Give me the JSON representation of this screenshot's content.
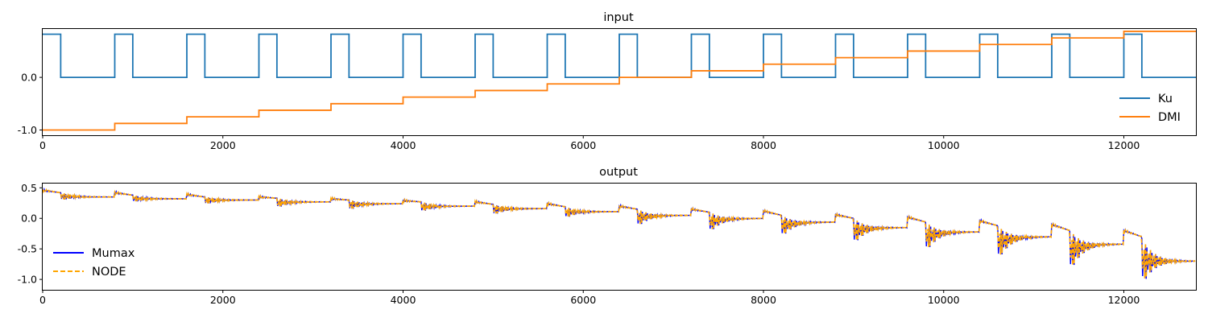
{
  "chart_data": [
    {
      "type": "line",
      "title": "input",
      "xlabel": "",
      "ylabel": "",
      "xlim": [
        0,
        12800
      ],
      "ylim": [
        -1.1,
        0.92
      ],
      "xticks": [
        0,
        2000,
        4000,
        6000,
        8000,
        10000,
        12000
      ],
      "yticks": [
        -1.0,
        0.0
      ],
      "legend": "lower-right",
      "series": [
        {
          "name": "Ku",
          "color": "#1f77b4",
          "style": "solid",
          "base": 0.0,
          "high": 0.82,
          "pulses": [
            [
              0,
              200
            ],
            [
              800,
              1000
            ],
            [
              1600,
              1800
            ],
            [
              2400,
              2600
            ],
            [
              3200,
              3400
            ],
            [
              4000,
              4200
            ],
            [
              4800,
              5000
            ],
            [
              5600,
              5800
            ],
            [
              6400,
              6600
            ],
            [
              7200,
              7400
            ],
            [
              8000,
              8200
            ],
            [
              8800,
              9000
            ],
            [
              9600,
              9800
            ],
            [
              10400,
              10600
            ],
            [
              11200,
              11400
            ],
            [
              12000,
              12200
            ]
          ]
        },
        {
          "name": "DMI",
          "color": "#ff7f0e",
          "style": "solid",
          "step_starts": [
            0,
            800,
            1600,
            2400,
            3200,
            4000,
            4800,
            5600,
            6400,
            7200,
            8000,
            8800,
            9600,
            10400,
            11200,
            12000
          ],
          "values": [
            -1.0,
            -0.875,
            -0.75,
            -0.625,
            -0.5,
            -0.375,
            -0.25,
            -0.125,
            0.0,
            0.125,
            0.25,
            0.375,
            0.5,
            0.625,
            0.75,
            0.875
          ]
        }
      ]
    },
    {
      "type": "line",
      "title": "output",
      "xlabel": "",
      "ylabel": "",
      "xlim": [
        0,
        12800
      ],
      "ylim": [
        -1.17,
        0.57
      ],
      "xticks": [
        0,
        2000,
        4000,
        6000,
        8000,
        10000,
        12000
      ],
      "yticks": [
        0.5,
        0.0,
        -0.5,
        -1.0
      ],
      "legend": "lower-left",
      "series": [
        {
          "name": "Mumax",
          "color": "#0000ff",
          "style": "solid"
        },
        {
          "name": "NODE",
          "color": "#ffa500",
          "style": "dashed"
        }
      ],
      "segment_starts": [
        0,
        800,
        1600,
        2400,
        3200,
        4000,
        4800,
        5600,
        6400,
        7200,
        8000,
        8800,
        9600,
        10400,
        11200,
        12000
      ],
      "segment_peak": [
        0.46,
        0.42,
        0.39,
        0.35,
        0.32,
        0.29,
        0.27,
        0.24,
        0.2,
        0.15,
        0.12,
        0.06,
        0.02,
        -0.04,
        -0.1,
        -0.2
      ],
      "segment_mid": [
        0.42,
        0.38,
        0.35,
        0.33,
        0.3,
        0.27,
        0.23,
        0.19,
        0.15,
        0.1,
        0.05,
        0.0,
        -0.06,
        -0.12,
        -0.2,
        -0.3
      ],
      "segment_trough": [
        0.3,
        0.27,
        0.23,
        0.17,
        0.13,
        0.1,
        0.05,
        0.0,
        -0.15,
        -0.25,
        -0.33,
        -0.45,
        -0.58,
        -0.72,
        -0.92,
        -1.12
      ],
      "segment_end": [
        0.35,
        0.32,
        0.3,
        0.27,
        0.24,
        0.2,
        0.16,
        0.11,
        0.05,
        0.0,
        -0.06,
        -0.15,
        -0.22,
        -0.3,
        -0.42,
        -0.54
      ],
      "final_value": -0.7
    }
  ]
}
